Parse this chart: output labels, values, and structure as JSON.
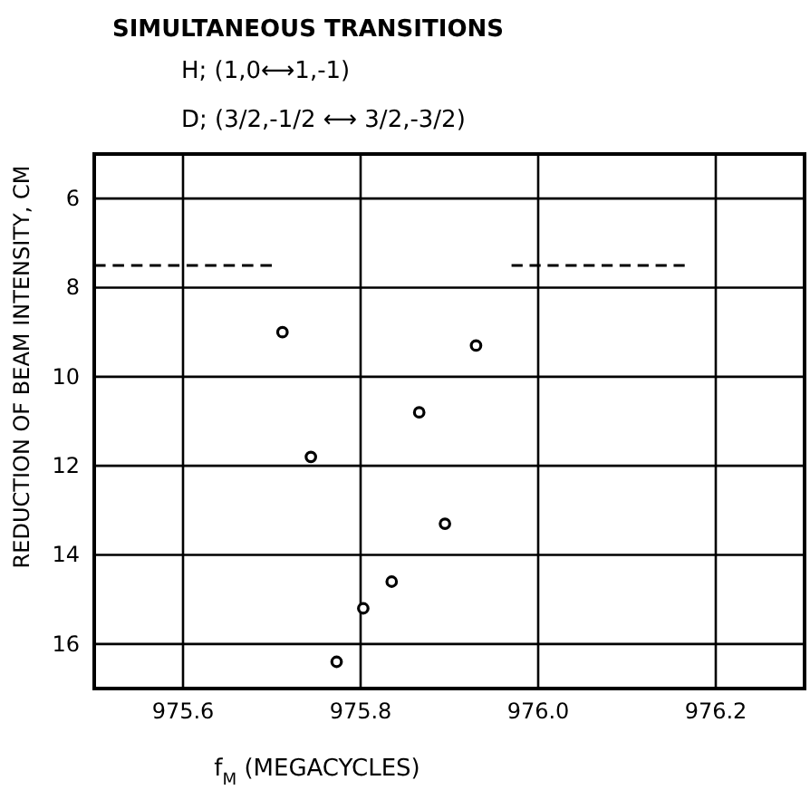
{
  "chart_data": {
    "type": "scatter",
    "title": "SIMULTANEOUS TRANSITIONS",
    "subtitle": "H; (1,0⟷1,-1)",
    "annotations": [
      "D; (3/2,-1/2 ⟷ 3/2,-3/2)"
    ],
    "xlabel": "f$_{M}$ (MEGACYCLES)",
    "ylabel": "REDUCTION OF BEAM INTENSITY, CM",
    "xlim": [
      975.5,
      976.3
    ],
    "xticks": [
      {
        "value": 975.6,
        "label": "975.6"
      },
      {
        "value": 975.8,
        "label": "975.8"
      },
      {
        "value": 976.0,
        "label": "976.0"
      },
      {
        "value": 976.2,
        "label": "976.2"
      }
    ],
    "ylim": [
      17,
      5
    ],
    "yticks": [
      6,
      8,
      10,
      12,
      14,
      16
    ],
    "grid": true,
    "series": [
      {
        "marker": "circle",
        "color": "#000000",
        "x": [
          975.712,
          975.93,
          975.866,
          975.744,
          975.895,
          975.835,
          975.803,
          975.773
        ],
        "values": [
          9.0,
          9.3,
          10.8,
          11.8,
          13.3,
          14.6,
          15.2,
          16.4
        ]
      },
      {
        "type": "line",
        "color": "#000000",
        "line_style": "dashed",
        "x": [
          975.5,
          975.7
        ],
        "values": [
          7.5,
          7.5
        ]
      },
      {
        "type": "line",
        "color": "#000000",
        "line_style": "dashed",
        "x": [
          975.97,
          976.165
        ],
        "values": [
          7.5,
          7.5
        ]
      }
    ]
  }
}
